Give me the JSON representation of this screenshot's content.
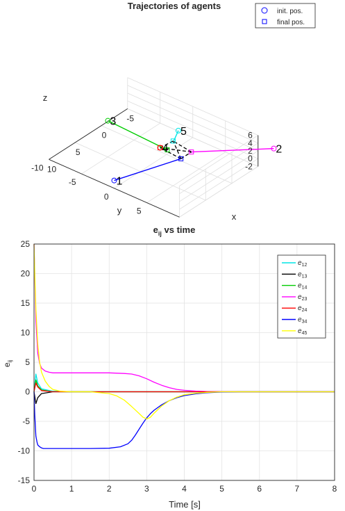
{
  "chart_data": [
    {
      "type": "line",
      "title": "Trajectories of agents",
      "xlabel": "x",
      "ylabel": "y",
      "zlabel": "z",
      "xlim": [
        -5,
        10
      ],
      "ylim": [
        -10,
        10
      ],
      "zlim": [
        -2,
        6
      ],
      "xticks": [
        "-5",
        "0",
        "5",
        "10"
      ],
      "yticks": [
        "-10",
        "-5",
        "0",
        "5",
        "10"
      ],
      "zticks": [
        "-2",
        "0",
        "2",
        "4",
        "6"
      ],
      "grid": true,
      "legend_position": "top-right",
      "legend": [
        {
          "label": "init. pos.",
          "marker": "circle",
          "color": "#0000ff"
        },
        {
          "label": "final pos.",
          "marker": "square",
          "color": "#0000ff"
        }
      ],
      "agents": [
        {
          "label": "1",
          "color": "#0000ff",
          "init": [
            10,
            0,
            0
          ]
        },
        {
          "label": "2",
          "color": "#ff00ff",
          "init": [
            -8,
            10,
            0
          ]
        },
        {
          "label": "3",
          "color": "#00cc00",
          "init": [
            0,
            -9,
            0
          ]
        },
        {
          "label": "4",
          "color": "#ff0000",
          "init": [
            0,
            -1,
            -1
          ]
        },
        {
          "label": "5",
          "color": "#00e5e5",
          "init": [
            -1,
            1,
            4
          ]
        }
      ]
    },
    {
      "type": "line",
      "title": "e_ij vs time",
      "title_main": "e",
      "title_sub": "ij",
      "title_rest": " vs time",
      "xlabel": "Time [s]",
      "ylabel_main": "e",
      "ylabel_sub": "ij",
      "xlim": [
        0,
        8
      ],
      "ylim": [
        -15,
        25
      ],
      "xticks": [
        "0",
        "1",
        "2",
        "3",
        "4",
        "5",
        "6",
        "7",
        "8"
      ],
      "yticks": [
        "-15",
        "-10",
        "-5",
        "0",
        "5",
        "10",
        "15",
        "20",
        "25"
      ],
      "grid": true,
      "legend_position": "top-right",
      "series": [
        {
          "name": "e12",
          "label_main": "e",
          "label_sub": "12",
          "color": "#00e5e5",
          "x": [
            0,
            0.05,
            0.1,
            0.2,
            0.5,
            1,
            8
          ],
          "y": [
            0,
            3,
            1.5,
            0.5,
            0.1,
            0,
            0
          ]
        },
        {
          "name": "e13",
          "label_main": "e",
          "label_sub": "13",
          "color": "#000000",
          "x": [
            0,
            0.05,
            0.1,
            0.2,
            0.5,
            8
          ],
          "y": [
            0,
            -2,
            -1,
            -0.3,
            0,
            0
          ]
        },
        {
          "name": "e14",
          "label_main": "e",
          "label_sub": "14",
          "color": "#00cc00",
          "x": [
            0,
            0.05,
            0.1,
            0.2,
            0.5,
            8
          ],
          "y": [
            0,
            2,
            1,
            0.3,
            0,
            0
          ]
        },
        {
          "name": "e23",
          "label_main": "e",
          "label_sub": "23",
          "color": "#ff00ff",
          "x": [
            0,
            0.05,
            0.1,
            0.15,
            0.2,
            0.3,
            0.4,
            0.5,
            0.7,
            1,
            1.5,
            2,
            2.4,
            2.6,
            2.8,
            3,
            3.2,
            3.4,
            3.6,
            3.8,
            4,
            4.3,
            4.6,
            5,
            5.5,
            6,
            8
          ],
          "y": [
            25,
            12,
            6.5,
            4.8,
            4,
            3.5,
            3.3,
            3.2,
            3.2,
            3.2,
            3.2,
            3.2,
            3.1,
            3.0,
            2.7,
            2.2,
            1.6,
            1.1,
            0.7,
            0.4,
            0.25,
            0.12,
            0.05,
            0.01,
            0,
            0,
            0
          ]
        },
        {
          "name": "e24",
          "label_main": "e",
          "label_sub": "24",
          "color": "#ff0000",
          "x": [
            0,
            0.05,
            0.1,
            0.2,
            0.5,
            8
          ],
          "y": [
            0,
            1.5,
            0.8,
            0.2,
            0,
            0
          ]
        },
        {
          "name": "e34",
          "label_main": "e",
          "label_sub": "34",
          "color": "#0000ff",
          "x": [
            0,
            0.02,
            0.05,
            0.08,
            0.1,
            0.15,
            0.2,
            0.25,
            0.3,
            0.4,
            0.6,
            1,
            1.5,
            2,
            2.3,
            2.5,
            2.6,
            2.7,
            2.8,
            2.9,
            3,
            3.1,
            3.2,
            3.4,
            3.6,
            3.8,
            4,
            4.3,
            4.6,
            5,
            5.5,
            6,
            8
          ],
          "y": [
            0,
            -4,
            -7.5,
            -8.5,
            -9,
            -9.3,
            -9.5,
            -9.6,
            -9.6,
            -9.6,
            -9.6,
            -9.6,
            -9.6,
            -9.55,
            -9.3,
            -8.8,
            -8.2,
            -7.3,
            -6.3,
            -5.3,
            -4.4,
            -3.7,
            -3.1,
            -2.2,
            -1.5,
            -1.0,
            -0.65,
            -0.35,
            -0.15,
            -0.05,
            0,
            0,
            0
          ]
        },
        {
          "name": "e45",
          "label_main": "e",
          "label_sub": "45",
          "color": "#ffff00",
          "x": [
            0,
            0.02,
            0.05,
            0.1,
            0.15,
            0.2,
            0.3,
            0.4,
            0.5,
            0.7,
            1,
            1.5,
            2,
            2.2,
            2.4,
            2.6,
            2.8,
            2.9,
            3,
            3.1,
            3.2,
            3.4,
            3.6,
            3.8,
            4,
            4.3,
            4.6,
            5,
            5.5,
            6,
            7,
            8
          ],
          "y": [
            25,
            20,
            14,
            8,
            5,
            3.3,
            1.8,
            0.9,
            0.4,
            0.1,
            0,
            0,
            -0.3,
            -0.7,
            -1.4,
            -2.5,
            -3.7,
            -4.3,
            -4.6,
            -4.3,
            -3.6,
            -2.4,
            -1.5,
            -0.9,
            -0.5,
            -0.25,
            -0.1,
            0,
            0,
            0,
            0,
            0
          ]
        }
      ]
    }
  ]
}
